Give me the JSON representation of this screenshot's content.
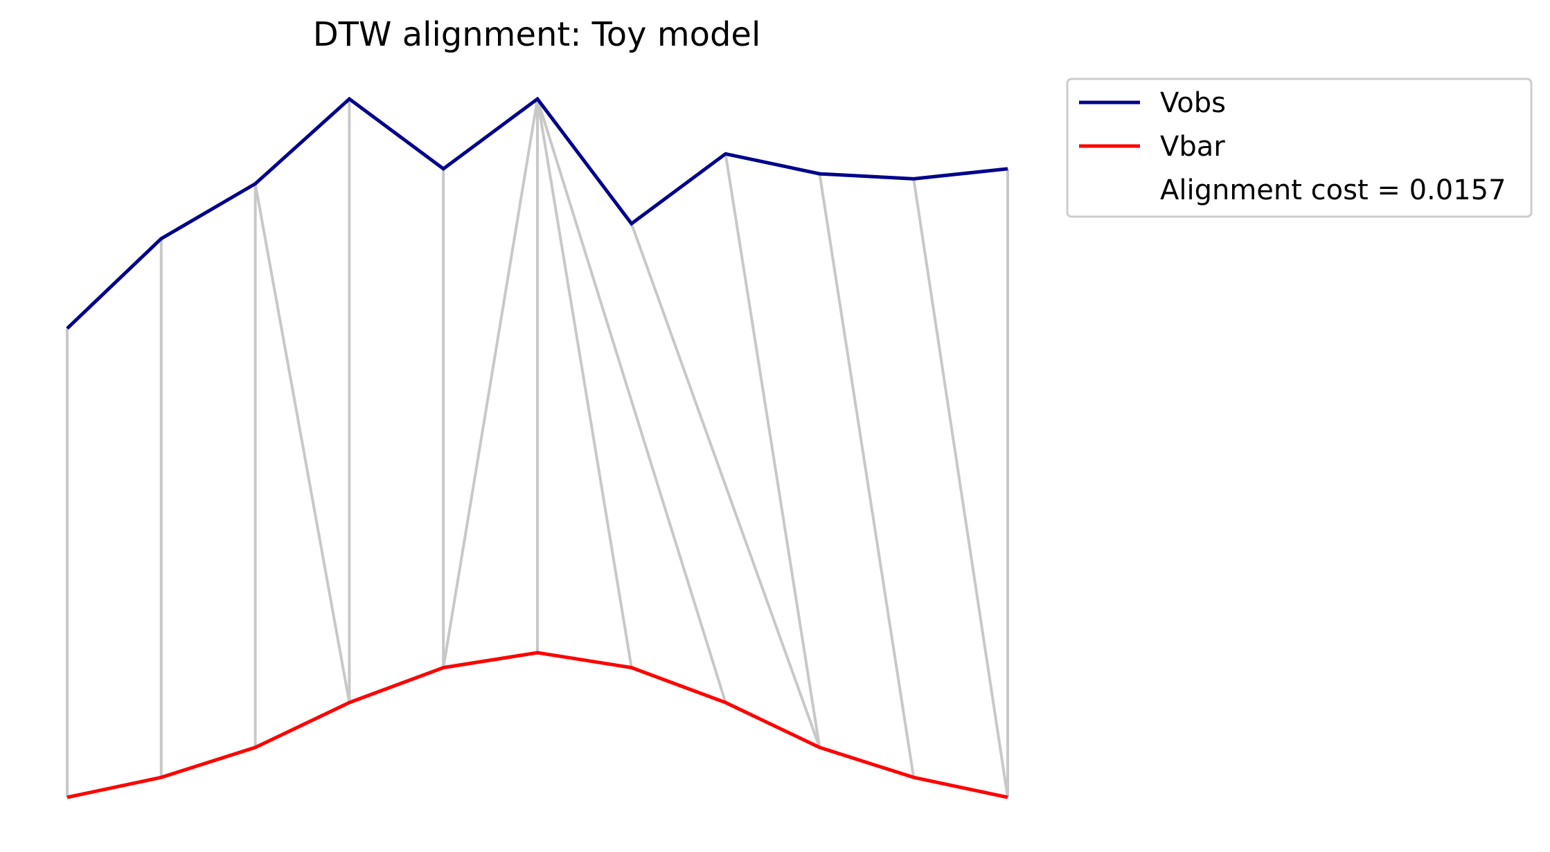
{
  "chart_data": {
    "type": "line",
    "title": "DTW alignment: Toy model",
    "xlabel": "",
    "ylabel": "",
    "axes_visible": false,
    "grid": false,
    "legend_position": "outside-top-right",
    "annotation": "Alignment cost = 0.0157",
    "x": [
      0,
      1,
      2,
      3,
      4,
      5,
      6,
      7,
      8,
      9,
      10
    ],
    "series": [
      {
        "name": "Vobs",
        "color": "#00008b",
        "values": [
          0.42,
          0.6,
          0.71,
          0.88,
          0.74,
          0.88,
          0.63,
          0.77,
          0.73,
          0.72,
          0.74
        ]
      },
      {
        "name": "Vbar",
        "color": "#ff0000",
        "values": [
          -0.52,
          -0.48,
          -0.42,
          -0.33,
          -0.26,
          -0.23,
          -0.26,
          -0.33,
          -0.42,
          -0.48,
          -0.52
        ]
      }
    ],
    "alignment_color": "#c8c8c8",
    "alignment_pairs": [
      [
        0,
        0
      ],
      [
        1,
        1
      ],
      [
        2,
        2
      ],
      [
        2,
        3
      ],
      [
        3,
        3
      ],
      [
        4,
        4
      ],
      [
        5,
        4
      ],
      [
        5,
        5
      ],
      [
        5,
        6
      ],
      [
        5,
        7
      ],
      [
        6,
        8
      ],
      [
        7,
        8
      ],
      [
        8,
        9
      ],
      [
        9,
        10
      ],
      [
        10,
        10
      ]
    ]
  }
}
